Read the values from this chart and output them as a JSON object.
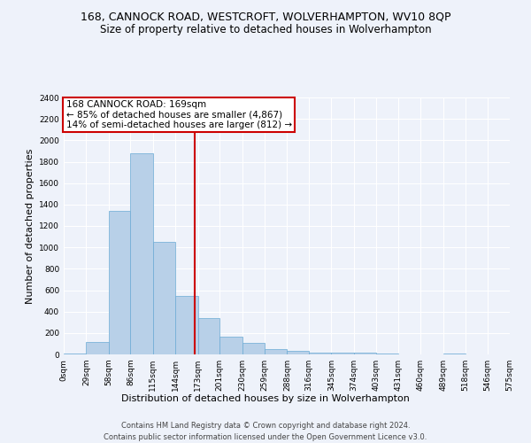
{
  "title": "168, CANNOCK ROAD, WESTCROFT, WOLVERHAMPTON, WV10 8QP",
  "subtitle": "Size of property relative to detached houses in Wolverhampton",
  "xlabel": "Distribution of detached houses by size in Wolverhampton",
  "ylabel": "Number of detached properties",
  "footer_line1": "Contains HM Land Registry data © Crown copyright and database right 2024.",
  "footer_line2": "Contains public sector information licensed under the Open Government Licence v3.0.",
  "annotation_line1": "168 CANNOCK ROAD: 169sqm",
  "annotation_line2": "← 85% of detached houses are smaller (4,867)",
  "annotation_line3": "14% of semi-detached houses are larger (812) →",
  "property_size": 169,
  "bin_edges": [
    0,
    29,
    58,
    86,
    115,
    144,
    173,
    201,
    230,
    259,
    288,
    316,
    345,
    374,
    403,
    431,
    460,
    489,
    518,
    546,
    575
  ],
  "bin_labels": [
    "0sqm",
    "29sqm",
    "58sqm",
    "86sqm",
    "115sqm",
    "144sqm",
    "173sqm",
    "201sqm",
    "230sqm",
    "259sqm",
    "288sqm",
    "316sqm",
    "345sqm",
    "374sqm",
    "403sqm",
    "431sqm",
    "460sqm",
    "489sqm",
    "518sqm",
    "546sqm",
    "575sqm"
  ],
  "bar_heights": [
    5,
    120,
    1340,
    1880,
    1050,
    550,
    340,
    165,
    105,
    50,
    30,
    20,
    20,
    15,
    5,
    2,
    2,
    10,
    2,
    2
  ],
  "bar_color": "#b8d0e8",
  "bar_edge_color": "#6aaad4",
  "vline_x": 169,
  "vline_color": "#cc0000",
  "ylim": [
    0,
    2400
  ],
  "yticks": [
    0,
    200,
    400,
    600,
    800,
    1000,
    1200,
    1400,
    1600,
    1800,
    2000,
    2200,
    2400
  ],
  "bg_color": "#eef2fa",
  "plot_bg_color": "#eef2fa",
  "annotation_box_color": "#ffffff",
  "annotation_box_edge": "#cc0000",
  "title_fontsize": 9,
  "subtitle_fontsize": 8.5,
  "axis_label_fontsize": 8,
  "tick_fontsize": 6.5,
  "annotation_fontsize": 7.5,
  "footer_fontsize": 6
}
